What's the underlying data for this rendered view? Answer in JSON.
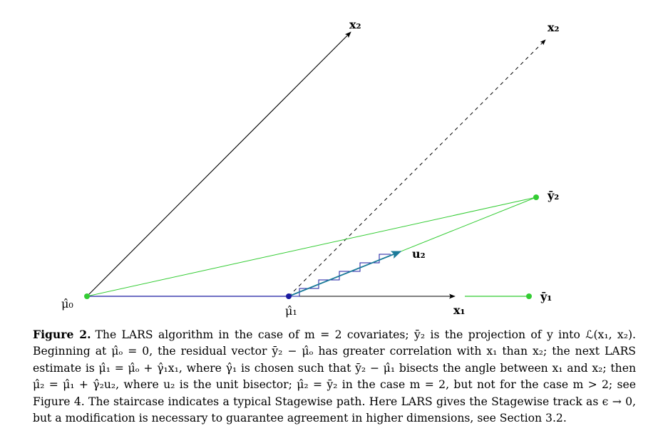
{
  "figure": {
    "labels": {
      "mu0": "μ̂₀",
      "mu1": "μ̂₁",
      "x1": "x₁",
      "x2_left": "x₂",
      "x2_right": "x₂",
      "u2": "u₂",
      "ybar1": "ȳ₁",
      "ybar2": "ȳ₂"
    },
    "colors": {
      "axis": "#000000",
      "green": "#33cc33",
      "blue": "#1a1aa0",
      "teal": "#1a7a99",
      "dashed": "#000000"
    }
  },
  "caption": {
    "label": "Figure 2.",
    "text": "The LARS algorithm in the case of m = 2 covariates; ȳ₂ is the projection of y into ℒ(x₁, x₂). Beginning at μ̂ₒ = 0, the residual vector ȳ₂ − μ̂ₒ has greater correlation with x₁ than x₂; the next LARS estimate is μ̂₁ = μ̂ₒ + γ̂₁x₁, where γ̂₁ is chosen such that ȳ₂ − μ̂₁ bisects the angle between x₁ and x₂; then μ̂₂ = μ̂₁ + γ̂₂u₂, where u₂ is the unit bisector; μ̂₂ = ȳ₂ in the case m = 2, but not for the case m > 2; see Figure 4. The staircase indicates a typical Stagewise path. Here LARS gives the Stagewise track as ϵ → 0, but a modification is necessary to guarantee agreement in higher dimensions, see Section 3.2."
  }
}
